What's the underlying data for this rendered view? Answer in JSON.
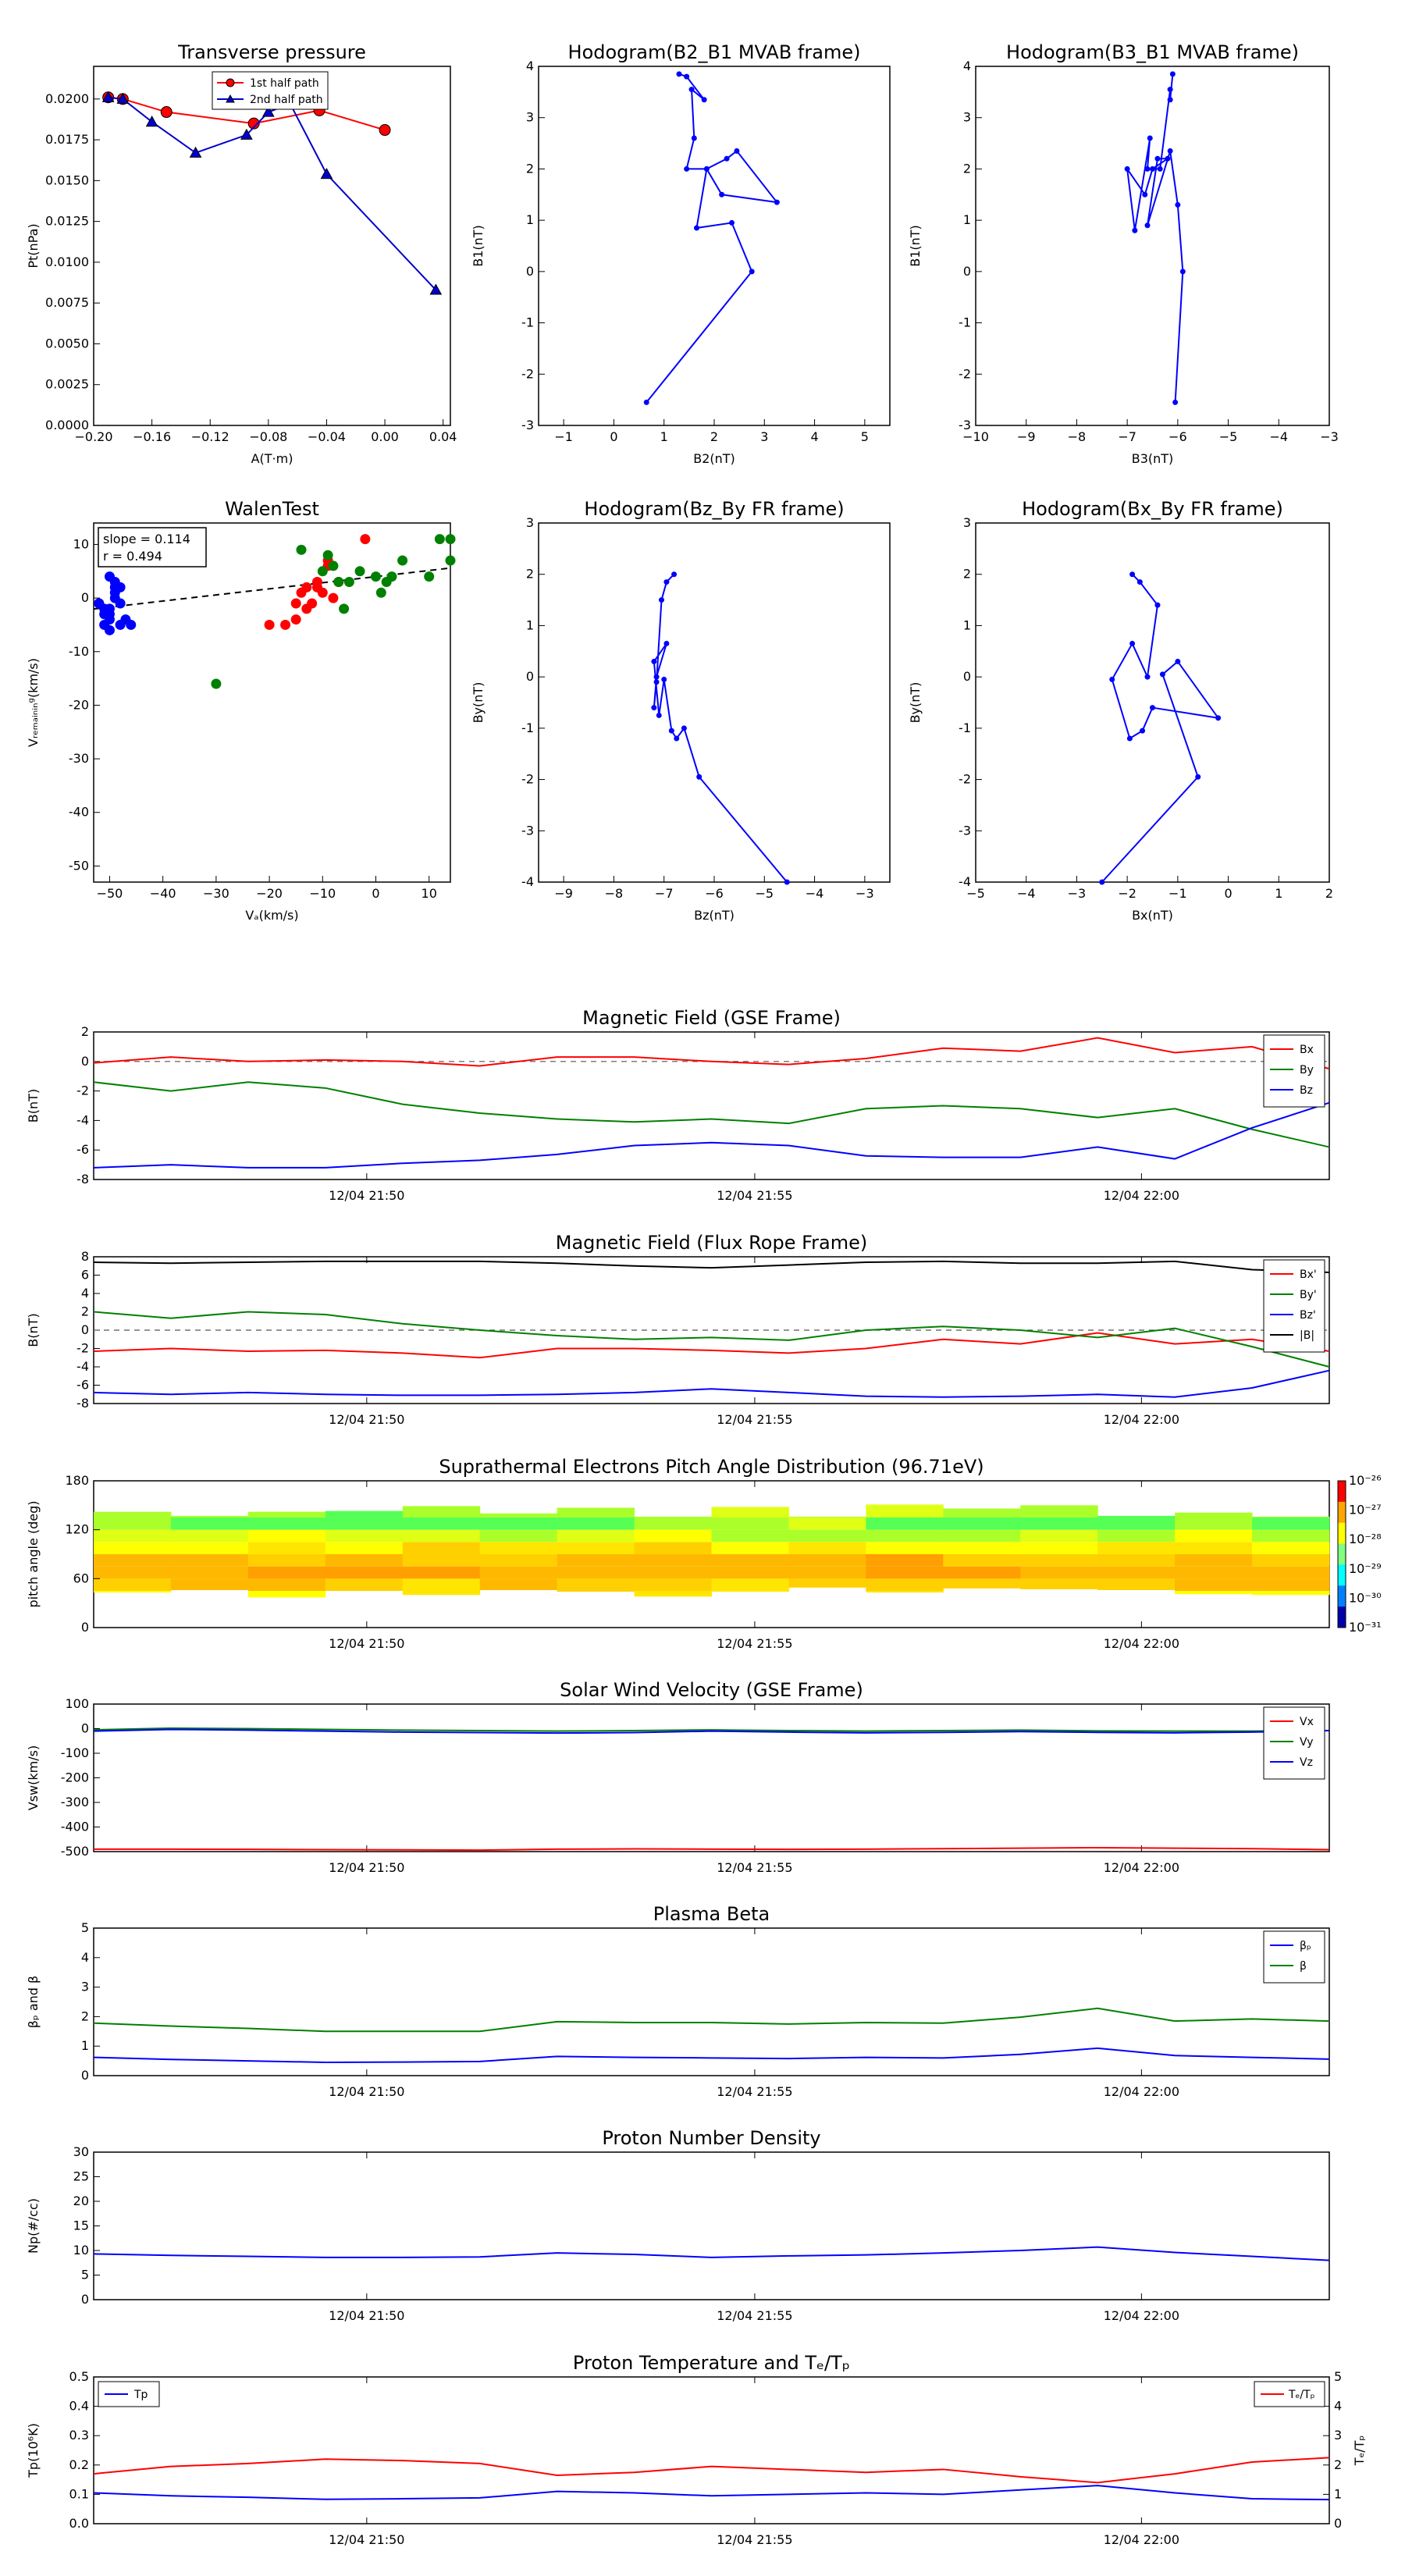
{
  "time_ticks": [
    "12/04 21:50",
    "12/04 21:55",
    "12/04 22:00"
  ],
  "chart_data": [
    {
      "id": "tp",
      "type": "line",
      "title": "Transverse pressure",
      "xlabel": "A(T·m)",
      "ylabel": "Pt(nPa)",
      "xlim": [
        -0.2,
        0.045
      ],
      "ylim": [
        0,
        0.022
      ],
      "xticks": [
        "-0.20",
        "-0.16",
        "-0.12",
        "-0.08",
        "-0.04",
        "0.00",
        "0.04"
      ],
      "yticks": [
        "0.0000",
        "0.0025",
        "0.0050",
        "0.0075",
        "0.0100",
        "0.0125",
        "0.0150",
        "0.0175",
        "0.0200"
      ],
      "legend_position": "top-center",
      "series": [
        {
          "name": "1st half path",
          "color": "#ff0000",
          "marker": "circle",
          "x": [
            -0.19,
            -0.18,
            -0.15,
            -0.09,
            -0.045,
            0.0
          ],
          "y": [
            0.0201,
            0.02,
            0.0192,
            0.0185,
            0.0193,
            0.0181
          ]
        },
        {
          "name": "2nd half path",
          "color": "#0000cc",
          "marker": "triangle",
          "x": [
            -0.19,
            -0.18,
            -0.16,
            -0.13,
            -0.095,
            -0.08,
            -0.065,
            -0.04,
            0.035
          ],
          "y": [
            0.0201,
            0.02,
            0.0186,
            0.0167,
            0.0178,
            0.0192,
            0.0197,
            0.0154,
            0.0083
          ]
        }
      ]
    },
    {
      "id": "h1",
      "type": "line",
      "title": "Hodogram(B2_B1 MVAB frame)",
      "xlabel": "B2(nT)",
      "ylabel": "B1(nT)",
      "xlim": [
        -1.5,
        5.5
      ],
      "ylim": [
        -3,
        4
      ],
      "xticks": [
        "-1",
        "0",
        "1",
        "2",
        "3",
        "4",
        "5"
      ],
      "yticks": [
        "-3",
        "-2",
        "-1",
        "0",
        "1",
        "2",
        "3",
        "4"
      ],
      "series": [
        {
          "name": "",
          "color": "#0000ff",
          "x": [
            0.65,
            2.75,
            2.35,
            1.65,
            1.85,
            2.15,
            3.25,
            2.45,
            2.25,
            1.85,
            1.45,
            1.6,
            1.55,
            1.8,
            1.45,
            1.3
          ],
          "y": [
            -2.55,
            0,
            0.95,
            0.85,
            2.0,
            1.5,
            1.35,
            2.35,
            2.2,
            2.0,
            2.0,
            2.6,
            3.55,
            3.35,
            3.8,
            3.85
          ]
        }
      ]
    },
    {
      "id": "h2",
      "type": "line",
      "title": "Hodogram(B3_B1 MVAB frame)",
      "xlabel": "B3(nT)",
      "ylabel": "B1(nT)",
      "xlim": [
        -10,
        -3
      ],
      "ylim": [
        -3,
        4
      ],
      "xticks": [
        "-10",
        "-9",
        "-8",
        "-7",
        "-6",
        "-5",
        "-4",
        "-3"
      ],
      "yticks": [
        "-3",
        "-2",
        "-1",
        "0",
        "1",
        "2",
        "3",
        "4"
      ],
      "series": [
        {
          "name": "",
          "color": "#0000ff",
          "x": [
            -6.05,
            -5.9,
            -6.0,
            -6.15,
            -6.6,
            -6.4,
            -6.2,
            -6.5,
            -6.65,
            -7.0,
            -6.85,
            -6.55,
            -6.6,
            -6.35,
            -6.15,
            -6.15,
            -6.1
          ],
          "y": [
            -2.55,
            0,
            1.3,
            2.35,
            0.9,
            2.2,
            2.2,
            2.0,
            1.5,
            2.0,
            0.8,
            2.6,
            2.0,
            2.0,
            3.55,
            3.35,
            3.85
          ]
        }
      ]
    },
    {
      "id": "walen",
      "type": "scatter",
      "title": "WalenTest",
      "xlabel": "Vₐ(km/s)",
      "ylabel": "Vᵣₑₘₐᵢₙᵢₙᵍ(km/s)",
      "xlim": [
        -53,
        14
      ],
      "ylim": [
        -53,
        14
      ],
      "xticks": [
        "-50",
        "-40",
        "-30",
        "-20",
        "-10",
        "0",
        "10"
      ],
      "yticks": [
        "-50",
        "-40",
        "-30",
        "-20",
        "-10",
        "0",
        "10"
      ],
      "annotation": [
        "slope = 0.114",
        "r = 0.494"
      ],
      "fit": {
        "slope": 0.114,
        "intercept": 4.0
      },
      "series": [
        {
          "name": "",
          "color": "#0000ff",
          "x": [
            -52,
            -51,
            -51,
            -50,
            -50,
            -50,
            -49,
            -49,
            -48,
            -48,
            -50,
            -51,
            -52,
            -49,
            -47,
            -46,
            -50,
            -48,
            -49
          ],
          "y": [
            -1,
            -3,
            -5,
            4,
            -2,
            -4,
            3,
            1,
            2,
            -5,
            -6,
            -2,
            -1,
            0,
            -4,
            -5,
            -3,
            -1,
            2
          ]
        },
        {
          "name": "",
          "color": "#ff0000",
          "x": [
            -20,
            -17,
            -15,
            -14,
            -13,
            -12,
            -11,
            -10,
            -9,
            -8,
            -7,
            -15,
            -13,
            -11,
            -9,
            -2
          ],
          "y": [
            -5,
            -5,
            -4,
            1,
            -2,
            -1,
            2,
            1,
            7,
            0,
            3,
            -1,
            2,
            3,
            6,
            11
          ]
        },
        {
          "name": "",
          "color": "#008000",
          "x": [
            -30,
            -14,
            -10,
            -9,
            -8,
            -7,
            -6,
            -5,
            -3,
            0,
            1,
            2,
            3,
            5,
            10,
            12,
            14,
            14
          ],
          "y": [
            -16,
            9,
            5,
            8,
            6,
            3,
            -2,
            3,
            5,
            4,
            1,
            3,
            4,
            7,
            4,
            11,
            7,
            11
          ]
        }
      ]
    },
    {
      "id": "h3",
      "type": "line",
      "title": "Hodogram(Bz_By FR frame)",
      "xlabel": "Bz(nT)",
      "ylabel": "By(nT)",
      "xlim": [
        -9.5,
        -2.5
      ],
      "ylim": [
        -4,
        3
      ],
      "xticks": [
        "-9",
        "-8",
        "-7",
        "-6",
        "-5",
        "-4",
        "-3"
      ],
      "yticks": [
        "-4",
        "-3",
        "-2",
        "-1",
        "0",
        "1",
        "2",
        "3"
      ],
      "series": [
        {
          "name": "",
          "color": "#0000ff",
          "x": [
            -4.55,
            -6.3,
            -6.6,
            -6.75,
            -6.85,
            -7.0,
            -7.1,
            -7.2,
            -6.95,
            -7.15,
            -7.2,
            -7.15,
            -7.05,
            -6.95,
            -6.8
          ],
          "y": [
            -4.0,
            -1.95,
            -1.0,
            -1.2,
            -1.05,
            -0.05,
            -0.75,
            0.3,
            0.65,
            0.0,
            -0.6,
            -0.1,
            1.5,
            1.85,
            2.0
          ]
        }
      ]
    },
    {
      "id": "h4",
      "type": "line",
      "title": "Hodogram(Bx_By FR frame)",
      "xlabel": "Bx(nT)",
      "ylabel": "By(nT)",
      "xlim": [
        -5,
        2
      ],
      "ylim": [
        -4,
        3
      ],
      "xticks": [
        "-5",
        "-4",
        "-3",
        "-2",
        "-1",
        "0",
        "1",
        "2"
      ],
      "yticks": [
        "-4",
        "-3",
        "-2",
        "-1",
        "0",
        "1",
        "2",
        "3"
      ],
      "series": [
        {
          "name": "",
          "color": "#0000ff",
          "x": [
            -2.5,
            -0.6,
            -1.3,
            -1.0,
            -0.2,
            -1.5,
            -1.7,
            -1.95,
            -2.3,
            -1.9,
            -1.6,
            -1.4,
            -1.75,
            -1.9
          ],
          "y": [
            -4.0,
            -1.95,
            0.05,
            0.3,
            -0.8,
            -0.6,
            -1.05,
            -1.2,
            -0.05,
            0.65,
            0.0,
            1.4,
            1.85,
            2.0
          ]
        }
      ]
    },
    {
      "id": "bgse",
      "type": "line",
      "title": "Magnetic Field (GSE Frame)",
      "ylabel": "B(nT)",
      "ylim": [
        -8,
        2
      ],
      "yticks": [
        "-8",
        "-6",
        "-4",
        "-2",
        "0",
        "2"
      ],
      "zero_line": true,
      "legend_position": "top-right",
      "series": [
        {
          "name": "Bx",
          "color": "#ff0000",
          "y": [
            -0.1,
            0.3,
            0.0,
            0.1,
            0.0,
            -0.3,
            0.3,
            0.3,
            0.0,
            -0.2,
            0.2,
            0.9,
            0.7,
            1.6,
            0.6,
            1.0,
            -0.5
          ]
        },
        {
          "name": "By",
          "color": "#008000",
          "y": [
            -1.4,
            -2.0,
            -1.4,
            -1.8,
            -2.9,
            -3.5,
            -3.9,
            -4.1,
            -3.9,
            -4.2,
            -3.2,
            -3.0,
            -3.2,
            -3.8,
            -3.2,
            -4.6,
            -5.8
          ]
        },
        {
          "name": "Bz",
          "color": "#0000ff",
          "y": [
            -7.2,
            -7.0,
            -7.2,
            -7.2,
            -6.9,
            -6.7,
            -6.3,
            -5.7,
            -5.5,
            -5.7,
            -6.4,
            -6.5,
            -6.5,
            -5.8,
            -6.6,
            -4.5,
            -2.8
          ]
        }
      ]
    },
    {
      "id": "bfr",
      "type": "line",
      "title": "Magnetic Field (Flux Rope Frame)",
      "ylabel": "B(nT)",
      "ylim": [
        -8,
        8
      ],
      "yticks": [
        "-8",
        "-6",
        "-4",
        "-2",
        "0",
        "2",
        "4",
        "6",
        "8"
      ],
      "zero_line": true,
      "legend_position": "top-right",
      "series": [
        {
          "name": "Bx'",
          "color": "#ff0000",
          "y": [
            -2.3,
            -2.0,
            -2.3,
            -2.2,
            -2.5,
            -3.0,
            -2.0,
            -2.0,
            -2.2,
            -2.5,
            -2.0,
            -1.0,
            -1.5,
            -0.3,
            -1.5,
            -1.0,
            -2.3
          ]
        },
        {
          "name": "By'",
          "color": "#008000",
          "y": [
            2.0,
            1.3,
            2.0,
            1.7,
            0.7,
            0.0,
            -0.6,
            -1.0,
            -0.8,
            -1.1,
            0.0,
            0.4,
            0.0,
            -0.8,
            0.2,
            -1.8,
            -4.0
          ]
        },
        {
          "name": "Bz'",
          "color": "#0000ff",
          "y": [
            -6.8,
            -7.0,
            -6.8,
            -7.0,
            -7.1,
            -7.1,
            -7.0,
            -6.8,
            -6.4,
            -6.8,
            -7.2,
            -7.3,
            -7.2,
            -7.0,
            -7.3,
            -6.3,
            -4.4
          ]
        },
        {
          "name": "|B|",
          "color": "#000000",
          "y": [
            7.4,
            7.3,
            7.4,
            7.5,
            7.5,
            7.5,
            7.3,
            7.0,
            6.8,
            7.1,
            7.4,
            7.5,
            7.3,
            7.3,
            7.5,
            6.6,
            6.3
          ]
        }
      ]
    },
    {
      "id": "pad",
      "type": "heatmap",
      "title": "Suprathermal Electrons Pitch Angle Distribution (96.71eV)",
      "ylabel": "pitch angle (deg)",
      "ylim": [
        0,
        180
      ],
      "yticks": [
        "0",
        "60",
        "120",
        "180"
      ],
      "colorbar_ticks": [
        "10⁻²⁶",
        "10⁻²⁷",
        "10⁻²⁸",
        "10⁻²⁹",
        "10⁻³⁰",
        "10⁻³¹"
      ]
    },
    {
      "id": "vsw",
      "type": "line",
      "title": "Solar Wind Velocity (GSE Frame)",
      "ylabel": "Vsw(km/s)",
      "ylim": [
        -500,
        100
      ],
      "yticks": [
        "-500",
        "-400",
        "-300",
        "-200",
        "-100",
        "0",
        "100"
      ],
      "legend_position": "top-right",
      "series": [
        {
          "name": "Vx",
          "color": "#ff0000",
          "y": [
            -490,
            -490,
            -491,
            -492,
            -493,
            -494,
            -490,
            -489,
            -490,
            -491,
            -490,
            -488,
            -486,
            -484,
            -486,
            -488,
            -492
          ]
        },
        {
          "name": "Vy",
          "color": "#008000",
          "y": [
            -5,
            2,
            0,
            -3,
            -6,
            -8,
            -10,
            -8,
            -5,
            -8,
            -10,
            -8,
            -6,
            -9,
            -10,
            -10,
            -8
          ]
        },
        {
          "name": "Vz",
          "color": "#0000ff",
          "y": [
            -10,
            -3,
            -6,
            -10,
            -14,
            -16,
            -18,
            -16,
            -10,
            -14,
            -17,
            -15,
            -12,
            -15,
            -17,
            -14,
            -8
          ]
        }
      ]
    },
    {
      "id": "beta",
      "type": "line",
      "title": "Plasma Beta",
      "ylabel": "βₚ and β",
      "ylim": [
        0,
        5
      ],
      "yticks": [
        "0",
        "1",
        "2",
        "3",
        "4",
        "5"
      ],
      "legend_position": "top-right",
      "series": [
        {
          "name": "βₚ",
          "color": "#0000ff",
          "y": [
            0.62,
            0.55,
            0.5,
            0.45,
            0.46,
            0.48,
            0.65,
            0.62,
            0.6,
            0.58,
            0.62,
            0.6,
            0.72,
            0.93,
            0.68,
            0.62,
            0.56
          ]
        },
        {
          "name": "β",
          "color": "#008000",
          "y": [
            1.78,
            1.68,
            1.6,
            1.5,
            1.5,
            1.5,
            1.83,
            1.8,
            1.8,
            1.75,
            1.8,
            1.78,
            1.98,
            2.28,
            1.85,
            1.92,
            1.85
          ]
        }
      ]
    },
    {
      "id": "np",
      "type": "line",
      "title": "Proton Number Density",
      "ylabel": "Np(#/cc)",
      "ylim": [
        0,
        30
      ],
      "yticks": [
        "0",
        "5",
        "10",
        "15",
        "20",
        "25",
        "30"
      ],
      "series": [
        {
          "name": "",
          "color": "#0000ff",
          "y": [
            9.3,
            9.0,
            8.8,
            8.6,
            8.6,
            8.7,
            9.5,
            9.2,
            8.6,
            8.9,
            9.1,
            9.5,
            10.0,
            10.7,
            9.6,
            8.8,
            8.0
          ]
        }
      ]
    },
    {
      "id": "tpr",
      "type": "line",
      "title": "Proton Temperature and Tₑ/Tₚ",
      "ylabel": "Tp(10⁶K)",
      "ylabel_right": "Tₑ/Tₚ",
      "ylim": [
        0,
        0.5
      ],
      "yticks": [
        "0.0",
        "0.1",
        "0.2",
        "0.3",
        "0.4",
        "0.5"
      ],
      "ylim_right": [
        0,
        5
      ],
      "yticks_right": [
        "0",
        "1",
        "2",
        "3",
        "4",
        "5"
      ],
      "series": [
        {
          "name": "Tp",
          "color": "#0000ff",
          "axis": "left",
          "legend_position": "top-left",
          "y": [
            0.105,
            0.095,
            0.09,
            0.083,
            0.085,
            0.088,
            0.11,
            0.105,
            0.095,
            0.1,
            0.105,
            0.1,
            0.115,
            0.13,
            0.105,
            0.085,
            0.082
          ]
        },
        {
          "name": "Tₑ/Tₚ",
          "color": "#ff0000",
          "axis": "right",
          "legend_position": "top-right",
          "y": [
            1.7,
            1.95,
            2.05,
            2.2,
            2.15,
            2.05,
            1.65,
            1.75,
            1.95,
            1.85,
            1.75,
            1.85,
            1.6,
            1.4,
            1.7,
            2.1,
            2.25
          ]
        }
      ]
    }
  ]
}
